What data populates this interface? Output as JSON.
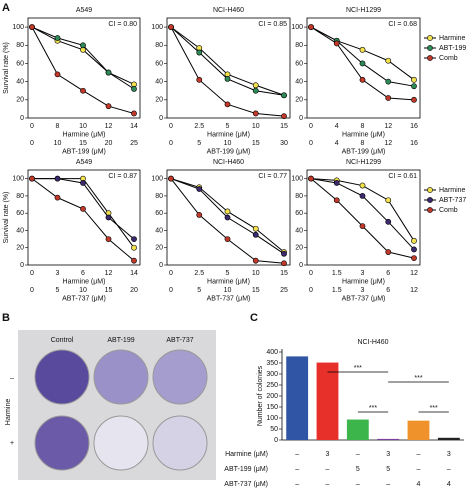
{
  "figure_labels": [
    "A",
    "B",
    "C"
  ],
  "colony_assay": {
    "columns": [
      "Control",
      "ABT-199",
      "ABT-737"
    ],
    "row_title": "Harmine",
    "rows": [
      "–",
      "+"
    ]
  },
  "chart_data": [
    {
      "type": "line",
      "title": "A549",
      "annotation": "CI = 0.80",
      "ylabel": "Survival rate (%)",
      "xlabel": "Harmine (μM)",
      "xlabel2": "ABT-199 (μM)",
      "categories": [
        "0",
        "8",
        "10",
        "12",
        "14"
      ],
      "categories2": [
        "0",
        "10",
        "15",
        "20",
        "25"
      ],
      "ylim": [
        0,
        110
      ],
      "yticks": [
        0,
        20,
        40,
        60,
        80,
        100
      ],
      "series": [
        {
          "name": "Harmine",
          "color": "#f2e14c",
          "values": [
            100,
            85,
            75,
            50,
            37
          ]
        },
        {
          "name": "ABT-199",
          "color": "#2e8b57",
          "values": [
            100,
            88,
            80,
            50,
            32
          ]
        },
        {
          "name": "Comb",
          "color": "#c0392b",
          "values": [
            100,
            48,
            30,
            13,
            5
          ]
        }
      ]
    },
    {
      "type": "line",
      "title": "NCI-H460",
      "annotation": "CI = 0.85",
      "xlabel": "Harmine (μM)",
      "xlabel2": "ABT-199 (μM)",
      "categories": [
        "0",
        "2.5",
        "5",
        "10",
        "15"
      ],
      "categories2": [
        "0",
        "5",
        "10",
        "15",
        "30"
      ],
      "ylim": [
        0,
        110
      ],
      "yticks": [
        0,
        20,
        40,
        60,
        80,
        100
      ],
      "series": [
        {
          "name": "Harmine",
          "color": "#f2e14c",
          "values": [
            100,
            77,
            48,
            36,
            25
          ]
        },
        {
          "name": "ABT-199",
          "color": "#2e8b57",
          "values": [
            100,
            72,
            43,
            30,
            25
          ]
        },
        {
          "name": "Comb",
          "color": "#c0392b",
          "values": [
            100,
            42,
            15,
            5,
            2
          ]
        }
      ]
    },
    {
      "type": "line",
      "title": "NCI-H1299",
      "annotation": "CI = 0.68",
      "xlabel": "Harmine (μM)",
      "xlabel2": "ABT-199 (μM)",
      "categories": [
        "0",
        "4",
        "8",
        "12",
        "16"
      ],
      "categories2": [
        "0",
        "4",
        "8",
        "12",
        "16"
      ],
      "ylim": [
        0,
        110
      ],
      "yticks": [
        0,
        20,
        40,
        60,
        80,
        100
      ],
      "legend": "right",
      "series": [
        {
          "name": "Harmine",
          "color": "#f2e14c",
          "values": [
            100,
            85,
            75,
            63,
            42
          ]
        },
        {
          "name": "ABT-199",
          "color": "#2e8b57",
          "values": [
            100,
            85,
            60,
            40,
            35
          ]
        },
        {
          "name": "Comb",
          "color": "#c0392b",
          "values": [
            100,
            82,
            42,
            22,
            20
          ]
        }
      ]
    },
    {
      "type": "line",
      "title": "A549",
      "annotation": "CI = 0.87",
      "ylabel": "Survival rate (%)",
      "xlabel": "Harmine (μM)",
      "xlabel2": "ABT-737 (μM)",
      "categories": [
        "0",
        "3",
        "6",
        "12",
        "14"
      ],
      "categories2": [
        "0",
        "5",
        "10",
        "15",
        "20"
      ],
      "ylim": [
        0,
        110
      ],
      "yticks": [
        0,
        20,
        40,
        60,
        80,
        100
      ],
      "series": [
        {
          "name": "Harmine",
          "color": "#f2e14c",
          "values": [
            100,
            100,
            100,
            60,
            20
          ]
        },
        {
          "name": "ABT-737",
          "color": "#3b2a6e",
          "values": [
            100,
            100,
            95,
            55,
            30
          ]
        },
        {
          "name": "Comb",
          "color": "#c0392b",
          "values": [
            100,
            78,
            65,
            30,
            5
          ]
        }
      ]
    },
    {
      "type": "line",
      "title": "NCI-H460",
      "annotation": "CI = 0.77",
      "xlabel": "Harmine (μM)",
      "xlabel2": "ABT-737 (μM)",
      "categories": [
        "0",
        "2.5",
        "5",
        "10",
        "15"
      ],
      "categories2": [
        "0",
        "5",
        "10",
        "15",
        "25"
      ],
      "ylim": [
        0,
        110
      ],
      "yticks": [
        0,
        20,
        40,
        60,
        80,
        100
      ],
      "series": [
        {
          "name": "Harmine",
          "color": "#f2e14c",
          "values": [
            100,
            90,
            62,
            42,
            15
          ]
        },
        {
          "name": "ABT-737",
          "color": "#3b2a6e",
          "values": [
            100,
            88,
            55,
            35,
            13
          ]
        },
        {
          "name": "Comb",
          "color": "#c0392b",
          "values": [
            100,
            58,
            30,
            5,
            2
          ]
        }
      ]
    },
    {
      "type": "line",
      "title": "NCI-H1299",
      "annotation": "CI = 0.61",
      "xlabel": "Harmine (μM)",
      "xlabel2": "ABT-737 (μM)",
      "categories": [
        "0",
        "1.5",
        "3",
        "6",
        "12"
      ],
      "categories2": [
        "0",
        "1.5",
        "3",
        "6",
        "12"
      ],
      "ylim": [
        0,
        110
      ],
      "yticks": [
        0,
        20,
        40,
        60,
        80,
        100
      ],
      "legend": "right",
      "series": [
        {
          "name": "Harmine",
          "color": "#f2e14c",
          "values": [
            100,
            98,
            92,
            75,
            28
          ]
        },
        {
          "name": "ABT-737",
          "color": "#3b2a6e",
          "values": [
            100,
            95,
            80,
            50,
            18
          ]
        },
        {
          "name": "Comb",
          "color": "#c0392b",
          "values": [
            100,
            75,
            45,
            15,
            8
          ]
        }
      ]
    },
    {
      "type": "bar",
      "title": "NCI-H460",
      "ylabel": "Number of colonies",
      "values": [
        380,
        352,
        93,
        5,
        88,
        10
      ],
      "colors": [
        "#2f55a4",
        "#e8302a",
        "#3cb54a",
        "#7b3fa0",
        "#f0922b",
        "#222222"
      ],
      "ylim": [
        0,
        400
      ],
      "yticks": [
        0,
        50,
        100,
        150,
        200,
        250,
        300,
        350,
        400
      ],
      "annotations": [
        "***",
        "***",
        "***",
        "***"
      ],
      "conditions": [
        {
          "name": "Harmine (μM)",
          "labels": [
            "–",
            "3",
            "–",
            "3",
            "–",
            "3"
          ]
        },
        {
          "name": "ABT-199 (μM)",
          "labels": [
            "–",
            "–",
            "5",
            "5",
            "–",
            "–"
          ]
        },
        {
          "name": "ABT-737 (μM)",
          "labels": [
            "–",
            "–",
            "–",
            "–",
            "4",
            "4"
          ]
        }
      ]
    }
  ]
}
